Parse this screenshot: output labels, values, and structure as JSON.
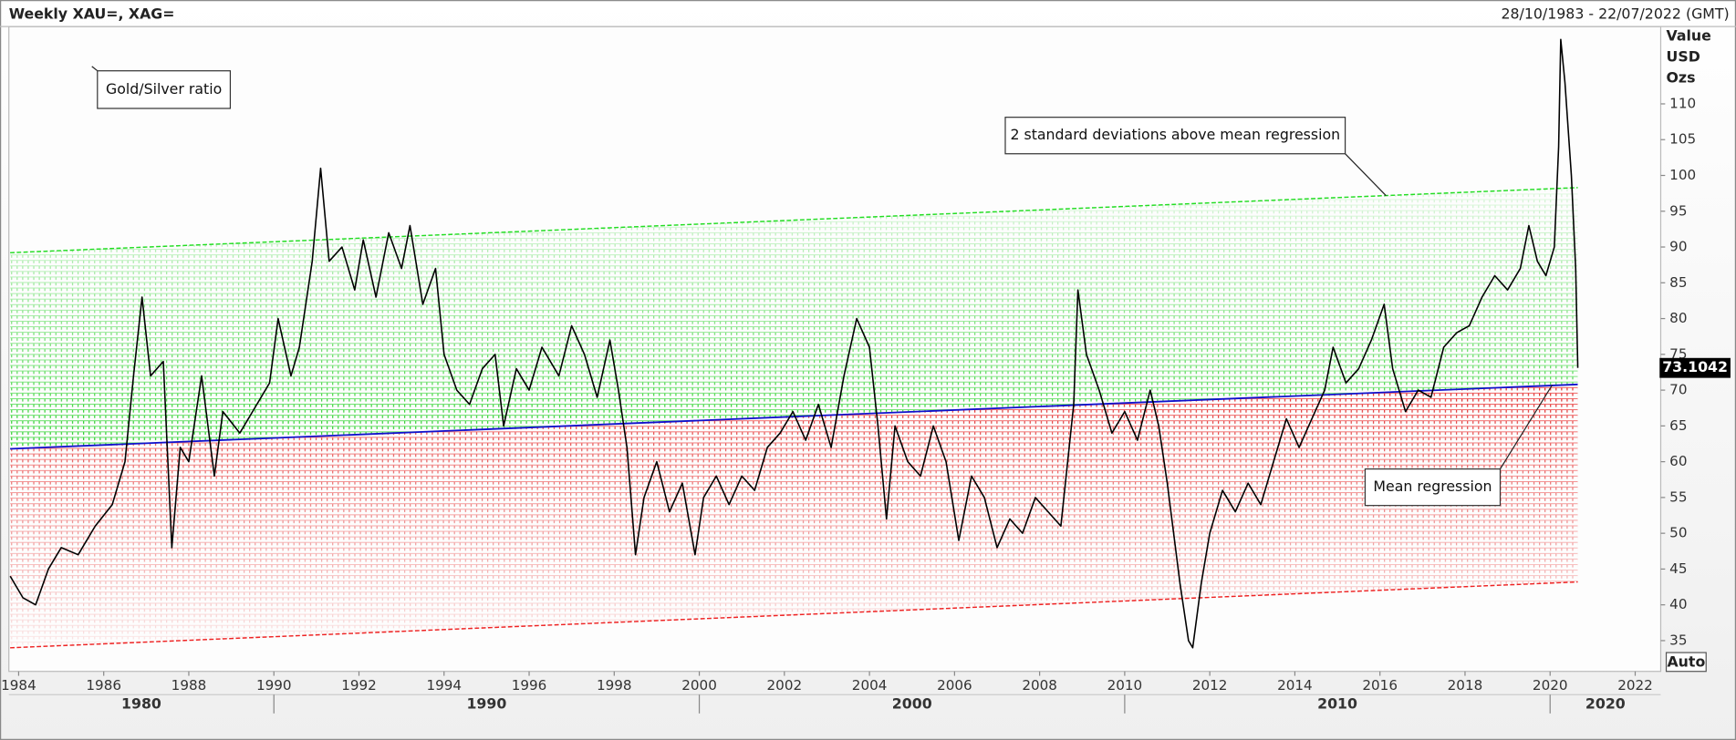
{
  "chart_data": {
    "type": "line",
    "title": "Weekly XAU=, XAG=",
    "subtitle": "28/10/1983 - 22/07/2022 (GMT)",
    "y_label": [
      "Value",
      "USD",
      "Ozs"
    ],
    "xlim": [
      1983.77,
      2022.6
    ],
    "ylim": [
      30.7,
      120.8
    ],
    "xticks": [
      1984,
      1986,
      1988,
      1990,
      1992,
      1994,
      1996,
      1998,
      2000,
      2002,
      2004,
      2006,
      2008,
      2010,
      2012,
      2014,
      2016,
      2018,
      2020,
      2022
    ],
    "decades": [
      1980,
      1990,
      2000,
      2010,
      2020
    ],
    "yticks": [
      35,
      40,
      45,
      50,
      55,
      60,
      65,
      70,
      75,
      80,
      85,
      90,
      95,
      100,
      105,
      110
    ],
    "x": [
      1983.8,
      1984.1,
      1984.4,
      1984.7,
      1985.0,
      1985.4,
      1985.8,
      1986.2,
      1986.5,
      1986.7,
      1986.9,
      1987.1,
      1987.4,
      1987.6,
      1987.8,
      1988.0,
      1988.3,
      1988.6,
      1988.8,
      1989.2,
      1989.6,
      1989.9,
      1990.1,
      1990.4,
      1990.6,
      1990.9,
      1991.1,
      1991.3,
      1991.6,
      1991.9,
      1992.1,
      1992.4,
      1992.7,
      1993.0,
      1993.2,
      1993.5,
      1993.8,
      1994.0,
      1994.3,
      1994.6,
      1994.9,
      1995.2,
      1995.4,
      1995.7,
      1996.0,
      1996.3,
      1996.7,
      1997.0,
      1997.3,
      1997.6,
      1997.9,
      1998.1,
      1998.3,
      1998.5,
      1998.7,
      1999.0,
      1999.3,
      1999.6,
      1999.9,
      2000.1,
      2000.4,
      2000.7,
      2001.0,
      2001.3,
      2001.6,
      2001.9,
      2002.2,
      2002.5,
      2002.8,
      2003.1,
      2003.4,
      2003.7,
      2004.0,
      2004.2,
      2004.4,
      2004.6,
      2004.9,
      2005.2,
      2005.5,
      2005.8,
      2006.1,
      2006.4,
      2006.7,
      2007.0,
      2007.3,
      2007.6,
      2007.9,
      2008.2,
      2008.5,
      2008.8,
      2008.9,
      2009.1,
      2009.4,
      2009.7,
      2010.0,
      2010.3,
      2010.6,
      2010.8,
      2011.0,
      2011.3,
      2011.5,
      2011.6,
      2011.8,
      2012.0,
      2012.3,
      2012.6,
      2012.9,
      2013.2,
      2013.5,
      2013.8,
      2014.1,
      2014.4,
      2014.7,
      2014.9,
      2015.2,
      2015.5,
      2015.8,
      2016.1,
      2016.3,
      2016.6,
      2016.9,
      2017.2,
      2017.5,
      2017.8,
      2018.1,
      2018.4,
      2018.7,
      2019.0,
      2019.3,
      2019.5,
      2019.7,
      2019.9,
      2020.1,
      2020.2,
      2020.25,
      2020.35,
      2020.5,
      2020.6,
      2020.65
    ],
    "series": [
      {
        "color": "#000000",
        "values": [
          44,
          41,
          40,
          45,
          48,
          47,
          51,
          54,
          60,
          72,
          83,
          72,
          74,
          48,
          62,
          60,
          72,
          58,
          67,
          64,
          68,
          71,
          80,
          72,
          76,
          88,
          101,
          88,
          90,
          84,
          91,
          83,
          92,
          87,
          93,
          82,
          87,
          75,
          70,
          68,
          73,
          75,
          65,
          73,
          70,
          76,
          72,
          79,
          75,
          69,
          77,
          70,
          62,
          47,
          55,
          60,
          53,
          57,
          47,
          55,
          58,
          54,
          58,
          56,
          62,
          64,
          67,
          63,
          68,
          62,
          72,
          80,
          76,
          65,
          52,
          65,
          60,
          58,
          65,
          60,
          49,
          58,
          55,
          48,
          52,
          50,
          55,
          53,
          51,
          68,
          84,
          75,
          70,
          64,
          67,
          63,
          70,
          65,
          57,
          43,
          35,
          34,
          43,
          50,
          56,
          53,
          57,
          54,
          60,
          66,
          62,
          66,
          70,
          76,
          71,
          73,
          77,
          82,
          73,
          67,
          70,
          69,
          76,
          78,
          79,
          83,
          86,
          84,
          87,
          93,
          88,
          86,
          90,
          104,
          119,
          113,
          100,
          87,
          73.1042
        ]
      }
    ],
    "regression": [
      {
        "color": "#22dd22",
        "x": [
          1983.8,
          2020.65
        ],
        "values": [
          89.2,
          98.3
        ]
      },
      {
        "color": "#1010cc",
        "x": [
          1983.8,
          2020.65
        ],
        "values": [
          61.8,
          70.8
        ]
      },
      {
        "color": "#ee2222",
        "x": [
          1983.8,
          2020.65
        ],
        "values": [
          34.0,
          43.2
        ]
      }
    ],
    "annotations": [
      "Gold/Silver ratio",
      "2 standard deviations above mean regression",
      "Mean regression"
    ],
    "button": "Auto"
  }
}
